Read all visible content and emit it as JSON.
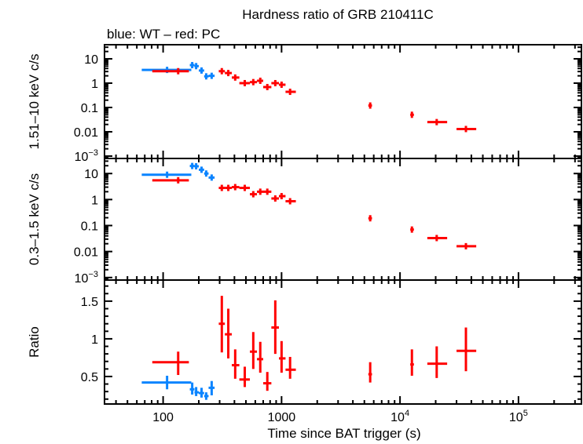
{
  "chart_data": {
    "type": "scatter",
    "title": "Hardness ratio of GRB 210411C",
    "subtitle": "blue: WT – red: PC",
    "xlabel": "Time since BAT trigger (s)",
    "xscale": "log",
    "xlim": [
      32,
      340000
    ],
    "xticks": [
      {
        "v": 100,
        "label": "100"
      },
      {
        "v": 1000,
        "label": "1000"
      },
      {
        "v": 10000,
        "label": "10",
        "exp": "4"
      },
      {
        "v": 100000,
        "label": "10",
        "exp": "5"
      }
    ],
    "colors": {
      "WT": "#0a84ff",
      "PC": "#ff0000"
    },
    "panels": [
      {
        "ylabel": "1.51–10 keV c/s",
        "yscale": "log",
        "ylim": [
          0.0008,
          38
        ],
        "yticks": [
          {
            "v": 10,
            "label": "10"
          },
          {
            "v": 1,
            "label": "1"
          },
          {
            "v": 0.1,
            "label": "0.1"
          },
          {
            "v": 0.01,
            "label": "0.01"
          },
          {
            "v": 0.001,
            "label": "10",
            "exp": "−3"
          }
        ],
        "series": [
          {
            "mode": "WT",
            "points": [
              [
                108,
                66,
                173,
                3.5
              ],
              [
                176,
                168,
                184,
                5.5
              ],
              [
                190,
                184,
                200,
                5.0
              ],
              [
                211,
                200,
                222,
                3.3
              ],
              [
                231,
                222,
                242,
                1.9
              ],
              [
                257,
                242,
                272,
                2.0
              ]
            ]
          },
          {
            "mode": "PC",
            "points": [
              [
                134,
                81,
                165,
                3.1
              ],
              [
                313,
                295,
                332,
                3.1
              ],
              [
                355,
                332,
                380,
                2.6
              ],
              [
                406,
                380,
                440,
                1.7
              ],
              [
                489,
                440,
                540,
                1.0
              ],
              [
                577,
                540,
                620,
                1.1
              ],
              [
                661,
                620,
                700,
                1.25
              ],
              [
                758,
                700,
                820,
                0.69
              ],
              [
                885,
                820,
                950,
                1.0
              ],
              [
                1000,
                950,
                1080,
                0.86
              ],
              [
                1180,
                1080,
                1320,
                0.44
              ],
              [
                5600,
                5400,
                5800,
                0.12
              ],
              [
                12600,
                12200,
                13100,
                0.05
              ],
              [
                20400,
                17000,
                25000,
                0.025
              ],
              [
                36000,
                30000,
                44000,
                0.013
              ]
            ]
          }
        ]
      },
      {
        "ylabel": "0.3–1.5 keV c/s",
        "yscale": "log",
        "ylim": [
          0.0008,
          38
        ],
        "yticks": [
          {
            "v": 10,
            "label": "10"
          },
          {
            "v": 1,
            "label": "1"
          },
          {
            "v": 0.1,
            "label": "0.1"
          },
          {
            "v": 0.01,
            "label": "0.01"
          },
          {
            "v": 0.001,
            "label": "10",
            "exp": "−3"
          }
        ],
        "series": [
          {
            "mode": "WT",
            "points": [
              [
                108,
                66,
                173,
                9.0
              ],
              [
                176,
                168,
                184,
                19.5
              ],
              [
                190,
                184,
                200,
                19
              ],
              [
                211,
                200,
                222,
                14
              ],
              [
                231,
                222,
                242,
                10
              ],
              [
                257,
                242,
                272,
                7
              ]
            ]
          },
          {
            "mode": "PC",
            "points": [
              [
                134,
                81,
                165,
                5.5
              ],
              [
                313,
                295,
                332,
                2.8
              ],
              [
                355,
                332,
                380,
                2.8
              ],
              [
                406,
                380,
                440,
                3.0
              ],
              [
                489,
                440,
                540,
                2.8
              ],
              [
                577,
                540,
                620,
                1.6
              ],
              [
                661,
                620,
                700,
                2.0
              ],
              [
                758,
                700,
                820,
                2.0
              ],
              [
                885,
                820,
                950,
                1.1
              ],
              [
                1000,
                950,
                1080,
                1.35
              ],
              [
                1180,
                1080,
                1320,
                0.86
              ],
              [
                5600,
                5400,
                5800,
                0.19
              ],
              [
                12600,
                12200,
                13100,
                0.07
              ],
              [
                20400,
                17000,
                25000,
                0.033
              ],
              [
                36000,
                30000,
                44000,
                0.016
              ]
            ]
          }
        ]
      },
      {
        "ylabel": "Ratio",
        "yscale": "linear",
        "ylim": [
          0.135,
          1.78
        ],
        "yticks": [
          {
            "v": 0.5,
            "label": "0.5"
          },
          {
            "v": 1,
            "label": "1"
          },
          {
            "v": 1.5,
            "label": "1.5"
          }
        ],
        "series": [
          {
            "mode": "WT",
            "points": [
              [
                108,
                66,
                173,
                0.42,
                0.33,
                0.51
              ],
              [
                176,
                168,
                184,
                0.33,
                0.26,
                0.42
              ],
              [
                190,
                184,
                200,
                0.29,
                0.24,
                0.36
              ],
              [
                211,
                200,
                222,
                0.28,
                0.22,
                0.35
              ],
              [
                231,
                222,
                242,
                0.24,
                0.19,
                0.29
              ],
              [
                257,
                242,
                272,
                0.35,
                0.25,
                0.44
              ]
            ]
          },
          {
            "mode": "PC",
            "points": [
              [
                134,
                81,
                165,
                0.69,
                0.52,
                0.83
              ],
              [
                313,
                295,
                332,
                1.2,
                0.82,
                1.57
              ],
              [
                355,
                332,
                380,
                1.06,
                0.74,
                1.4
              ],
              [
                406,
                380,
                440,
                0.65,
                0.47,
                0.86
              ],
              [
                489,
                440,
                540,
                0.46,
                0.36,
                0.63
              ],
              [
                577,
                540,
                620,
                0.83,
                0.6,
                1.09
              ],
              [
                661,
                620,
                700,
                0.73,
                0.55,
                0.96
              ],
              [
                758,
                700,
                820,
                0.41,
                0.31,
                0.56
              ],
              [
                885,
                820,
                950,
                1.15,
                0.8,
                1.51
              ],
              [
                1000,
                950,
                1080,
                0.74,
                0.55,
                0.97
              ],
              [
                1180,
                1080,
                1320,
                0.59,
                0.47,
                0.76
              ],
              [
                5600,
                5400,
                5800,
                0.53,
                0.42,
                0.69
              ],
              [
                12600,
                12200,
                13100,
                0.66,
                0.51,
                0.86
              ],
              [
                20400,
                17000,
                25000,
                0.67,
                0.48,
                0.9
              ],
              [
                36000,
                30000,
                44000,
                0.84,
                0.57,
                1.15
              ]
            ]
          }
        ]
      }
    ]
  }
}
